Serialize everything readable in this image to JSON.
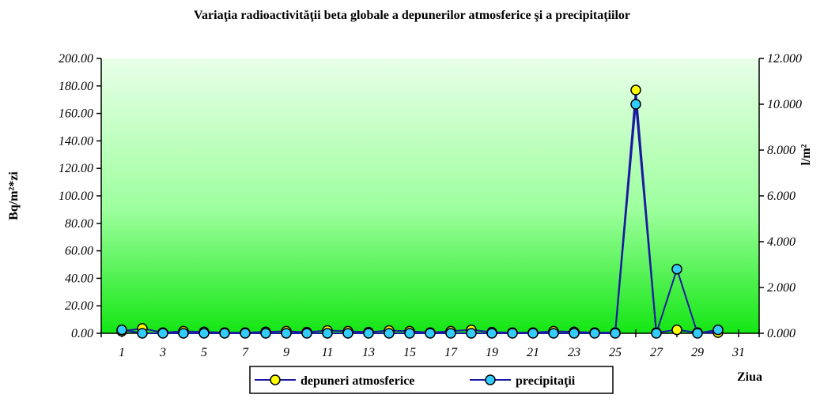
{
  "chart_data": {
    "type": "line",
    "title": "Variaţia radioactivităţii beta globale a depunerilor atmosferice şi a precipitaţiilor",
    "ylabel": "Bq/m²*zi",
    "y2label": "l/m²",
    "xlabel": "Ziua",
    "ylim": [
      0,
      200
    ],
    "y2lim": [
      0,
      12
    ],
    "xlim": [
      0,
      32
    ],
    "grid": false,
    "legend_position": "bottom-center",
    "background": "green-gradient",
    "yticks": [
      "0.00",
      "20.00",
      "40.00",
      "60.00",
      "80.00",
      "100.00",
      "120.00",
      "140.00",
      "160.00",
      "180.00",
      "200.00"
    ],
    "y2ticks": [
      "0.000",
      "2.000",
      "4.000",
      "6.000",
      "8.000",
      "10.000",
      "12.000"
    ],
    "xticks": [
      "1",
      "3",
      "5",
      "7",
      "9",
      "11",
      "13",
      "15",
      "17",
      "19",
      "21",
      "23",
      "25",
      "27",
      "29",
      "31"
    ],
    "xtick_values": [
      1,
      3,
      5,
      7,
      9,
      11,
      13,
      15,
      17,
      19,
      21,
      23,
      25,
      27,
      29,
      31
    ],
    "series": [
      {
        "name": "depuneri atmosferice",
        "axis": "left",
        "color": "#1a1aa0",
        "marker_color": "#ffff00",
        "x": [
          1,
          2,
          3,
          4,
          5,
          6,
          7,
          8,
          9,
          10,
          11,
          12,
          13,
          14,
          15,
          16,
          17,
          18,
          19,
          20,
          21,
          22,
          23,
          24,
          25,
          26,
          27,
          28,
          29,
          30
        ],
        "values": [
          1.5,
          3.5,
          0.5,
          1.5,
          1.0,
          0.5,
          0.5,
          1.0,
          1.5,
          0.8,
          2.0,
          1.5,
          0.8,
          2.0,
          1.5,
          0.5,
          1.5,
          2.5,
          0.8,
          0.5,
          0.5,
          1.5,
          1.0,
          0.5,
          0.5,
          177,
          0.5,
          2.5,
          0.5,
          0.5
        ]
      },
      {
        "name": "precipitaţii",
        "axis": "right",
        "color": "#1a1aa0",
        "marker_color": "#33ccff",
        "x": [
          1,
          2,
          3,
          4,
          5,
          6,
          7,
          8,
          9,
          10,
          11,
          12,
          13,
          14,
          15,
          16,
          17,
          18,
          19,
          20,
          21,
          22,
          23,
          24,
          25,
          26,
          27,
          28,
          29,
          30
        ],
        "values": [
          0.15,
          0,
          0,
          0,
          0,
          0,
          0,
          0,
          0,
          0,
          0,
          0,
          0,
          0,
          0,
          0,
          0,
          0,
          0,
          0,
          0,
          0,
          0,
          0,
          0,
          10.0,
          0,
          2.8,
          0,
          0.15
        ]
      }
    ]
  }
}
